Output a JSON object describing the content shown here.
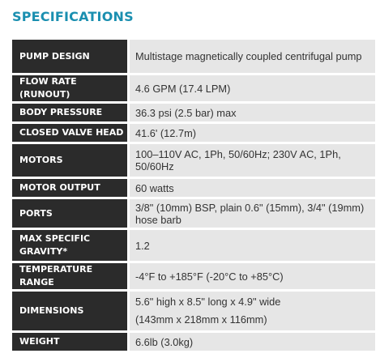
{
  "heading": "SPECIFICATIONS",
  "rows": [
    {
      "label": "PUMP DESIGN",
      "value": "Multistage magnetically coupled centrifugal pump"
    },
    {
      "label": "FLOW RATE (RUNOUT)",
      "value": "4.6 GPM (17.4 LPM)"
    },
    {
      "label": "BODY PRESSURE",
      "value": "36.3 psi (2.5 bar) max"
    },
    {
      "label": "CLOSED VALVE HEAD",
      "value": "41.6' (12.7m)"
    },
    {
      "label": "MOTORS",
      "value": "100–110V AC, 1Ph, 50/60Hz; 230V AC, 1Ph, 50/60Hz"
    },
    {
      "label": "MOTOR OUTPUT",
      "value": "60 watts"
    },
    {
      "label": "PORTS",
      "value": "3/8\" (10mm) BSP, plain 0.6\" (15mm), 3/4\" (19mm) hose barb"
    },
    {
      "label": "MAX SPECIFIC GRAVITY*",
      "value": "1.2"
    },
    {
      "label": "TEMPERATURE RANGE",
      "value": "-4°F to +185°F (-20°C to +85°C)"
    },
    {
      "label": "DIMENSIONS",
      "value_line1": "5.6\" high x 8.5\" long x 4.9\" wide",
      "value_line2": "(143mm x 218mm x 116mm)"
    },
    {
      "label": "WEIGHT",
      "value": "6.6lb (3.0kg)"
    }
  ]
}
